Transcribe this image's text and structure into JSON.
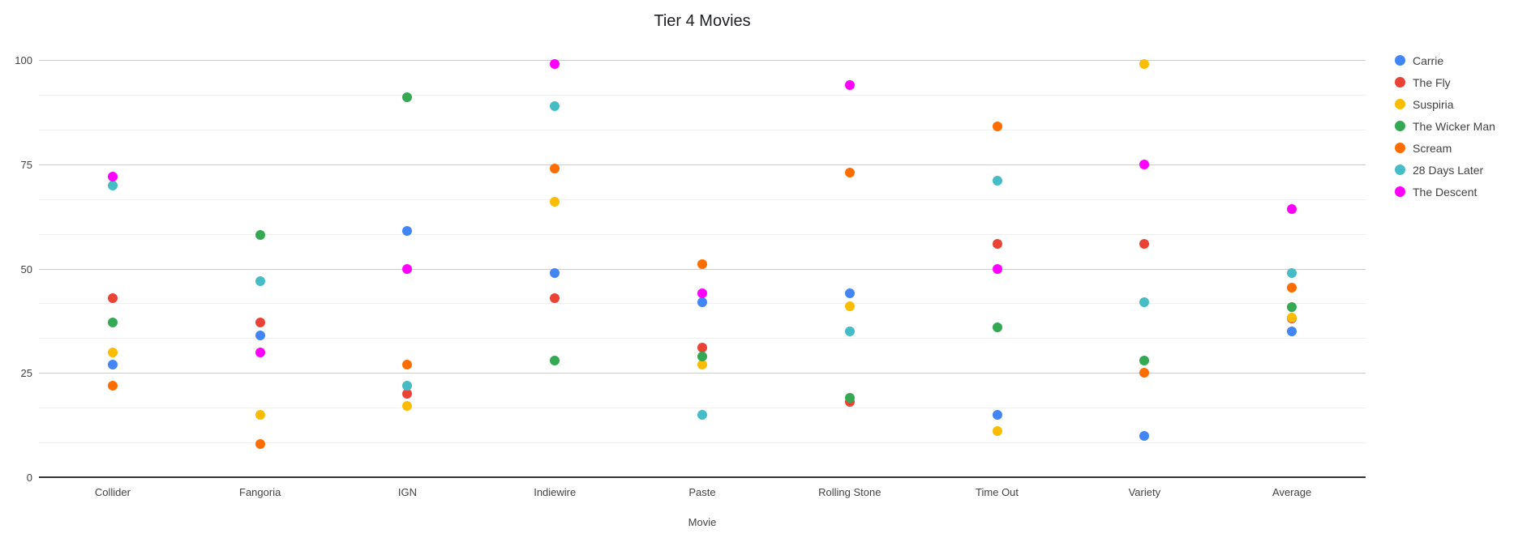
{
  "chart_data": {
    "type": "scatter",
    "title": "Tier 4 Movies",
    "xlabel": "Movie",
    "ylabel": "",
    "ylim": [
      0,
      100
    ],
    "y_ticks": [
      0,
      25,
      50,
      75,
      100
    ],
    "minor_gridlines_per_major": 2,
    "grid": true,
    "legend_position": "right",
    "categories": [
      "Collider",
      "Fangoria",
      "IGN",
      "Indiewire",
      "Paste",
      "Rolling Stone",
      "Time Out",
      "Variety",
      "Average"
    ],
    "series": [
      {
        "name": "Carrie",
        "color": "#4285F4",
        "values": [
          27,
          34,
          59,
          49,
          42,
          44,
          15,
          10,
          35
        ]
      },
      {
        "name": "The Fly",
        "color": "#EA4335",
        "values": [
          43,
          37,
          20,
          43,
          31,
          18,
          56,
          56,
          38
        ]
      },
      {
        "name": "Suspiria",
        "color": "#FBBC04",
        "values": [
          30,
          15,
          17,
          66,
          27,
          41,
          11,
          99,
          38.25
        ]
      },
      {
        "name": "The Wicker Man",
        "color": "#34A853",
        "values": [
          37,
          58,
          91,
          28,
          29,
          19,
          36,
          28,
          40.75
        ]
      },
      {
        "name": "Scream",
        "color": "#FF6D01",
        "values": [
          22,
          8,
          27,
          74,
          51,
          73,
          84,
          25,
          45.5
        ]
      },
      {
        "name": "28 Days Later",
        "color": "#46BDC6",
        "values": [
          70,
          47,
          22,
          89,
          15,
          35,
          71,
          42,
          48.88
        ]
      },
      {
        "name": "The Descent",
        "color": "#FF00FF",
        "values": [
          72,
          30,
          50,
          99,
          44,
          94,
          50,
          75,
          64.25
        ]
      }
    ]
  }
}
